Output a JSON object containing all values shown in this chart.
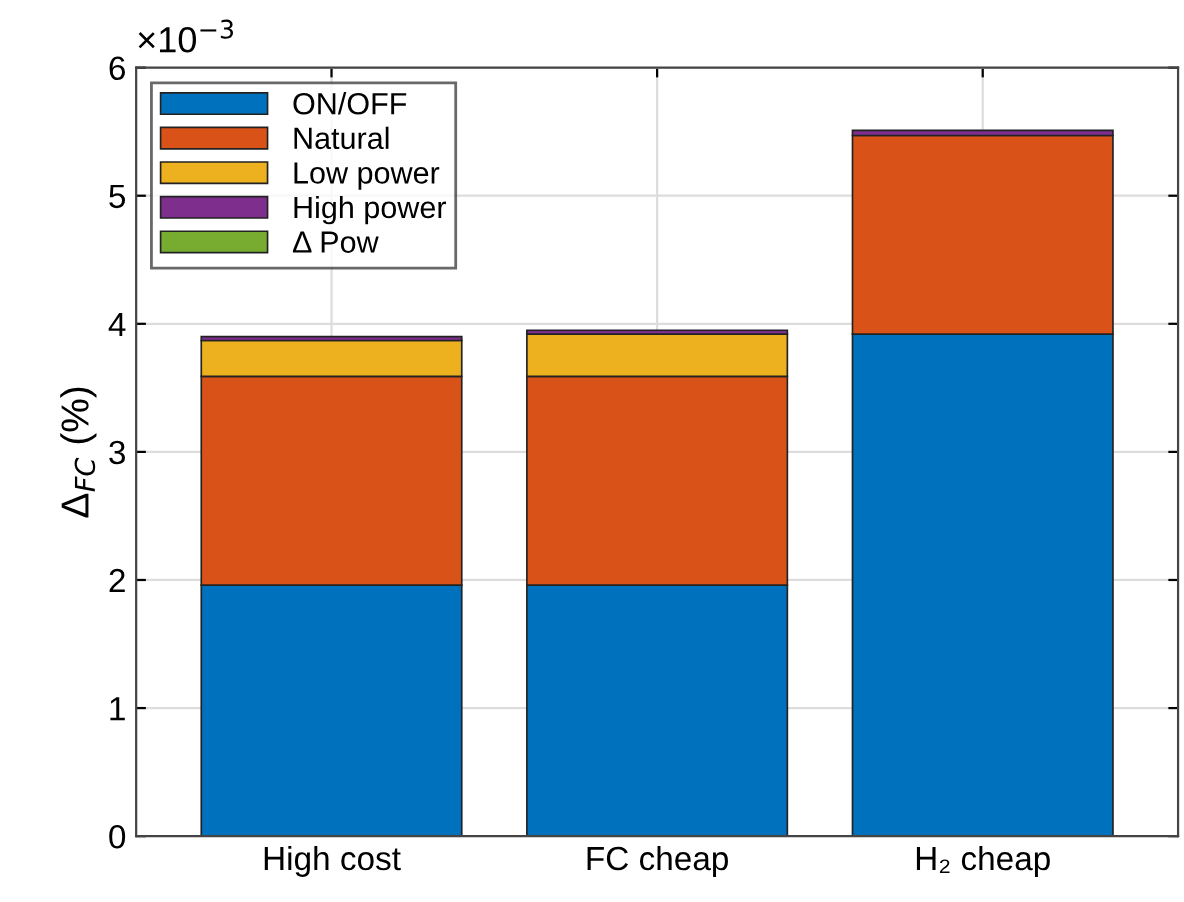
{
  "chart_data": {
    "type": "bar",
    "stacked": true,
    "ylabel": "Δ$_{FC}$ (%)",
    "categories": [
      "High cost",
      "FC cheap",
      "H₂ cheap"
    ],
    "series": [
      {
        "name": "ON/OFF",
        "color": "#0072bd",
        "values": [
          1.96,
          1.96,
          3.92
        ]
      },
      {
        "name": "Natural",
        "color": "#d95319",
        "values": [
          1.63,
          1.63,
          1.55
        ]
      },
      {
        "name": "Low power",
        "color": "#edb120",
        "values": [
          0.28,
          0.33,
          0
        ]
      },
      {
        "name": "High power",
        "color": "#7e2f8e",
        "values": [
          0.03,
          0.03,
          0.04
        ]
      },
      {
        "name": "Δ Pow",
        "color": "#77ac30",
        "values": [
          0,
          0,
          0
        ]
      }
    ],
    "ylim": [
      0,
      6
    ],
    "yticks": [
      0,
      1,
      2,
      3,
      4,
      5,
      6
    ],
    "annotations": [
      "×10$^{−3}$"
    ],
    "grid": true,
    "legend": "top left"
  }
}
